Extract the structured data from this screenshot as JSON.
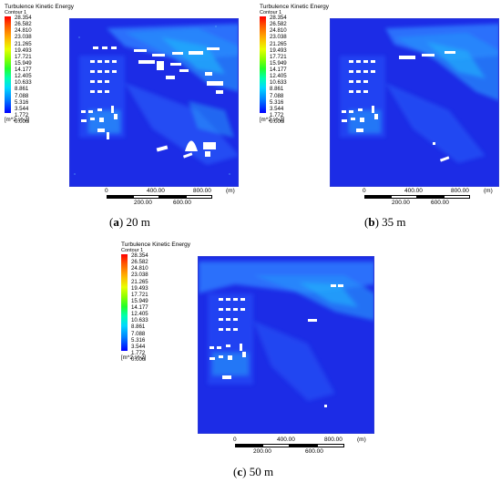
{
  "legend": {
    "title": "Turbulence Kinetic Energy",
    "subtitle": "Contour 1",
    "ticks": [
      "28.354",
      "26.582",
      "24.810",
      "23.038",
      "21.265",
      "19.493",
      "17.721",
      "15.949",
      "14.177",
      "12.405",
      "10.633",
      "8.861",
      "7.088",
      "5.316",
      "3.544",
      "1.772",
      "0.000"
    ],
    "unit": "[m^2 s^-2]"
  },
  "scalebar": {
    "top_labels": [
      "0",
      "400.00",
      "800.00",
      "(m)"
    ],
    "bottom_labels": [
      "200.00",
      "600.00"
    ]
  },
  "panels": [
    {
      "letter": "a",
      "height": " 20 m"
    },
    {
      "letter": "b",
      "height": " 35 m"
    },
    {
      "letter": "c",
      "height": " 50 m"
    }
  ]
}
